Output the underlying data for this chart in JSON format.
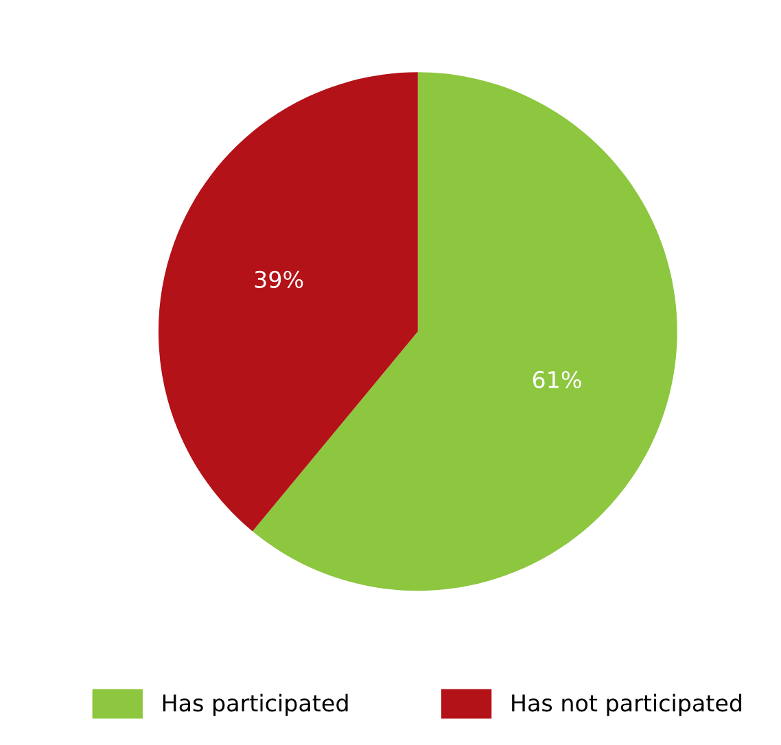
{
  "chart_data": {
    "type": "pie",
    "categories": [
      "Has participated",
      "Has not participated"
    ],
    "values": [
      61,
      39
    ],
    "colors": [
      "#8dc63f",
      "#b31218"
    ],
    "value_labels": [
      "61%",
      "39%"
    ],
    "legend": "bottom"
  }
}
